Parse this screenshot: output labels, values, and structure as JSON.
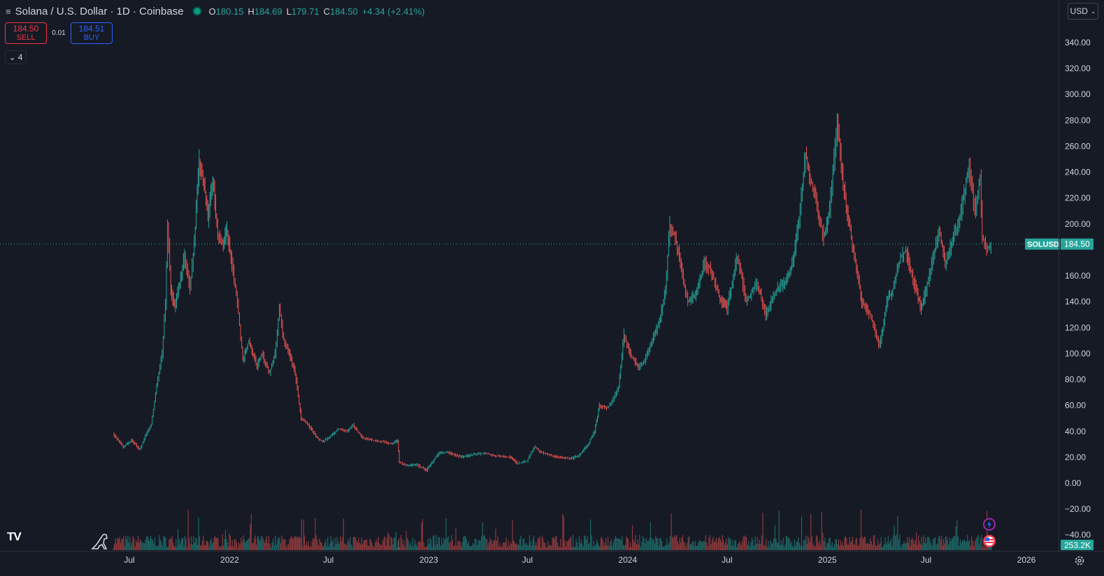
{
  "header": {
    "symbol": "Solana / U.S. Dollar · 1D · Coinbase",
    "ohlc": [
      {
        "k": "O",
        "v": "180.15"
      },
      {
        "k": "H",
        "v": "184.69"
      },
      {
        "k": "L",
        "v": "179.71"
      },
      {
        "k": "C",
        "v": "184.50"
      }
    ],
    "change": "+4.34 (+2.41%)"
  },
  "trade": {
    "sell_price": "184.50",
    "sell_label": "SELL",
    "spread": "0.01",
    "buy_price": "184.51",
    "buy_label": "BUY"
  },
  "indicators_count": "4",
  "currency": "USD",
  "colors": {
    "background": "#161a25",
    "up": "#26a69a",
    "down": "#ef5350",
    "grid": "#2a2e39",
    "text": "#d1d4dc",
    "sell": "#f23645",
    "buy": "#2962ff"
  },
  "chart_data": {
    "type": "line",
    "title": "Solana / U.S. Dollar · 1D · Coinbase",
    "price_label": {
      "symbol": "SOLUSD",
      "value": "184.50"
    },
    "volume_label": "253.2K",
    "yticks": [
      {
        "v": 340,
        "label": "340.00"
      },
      {
        "v": 320,
        "label": "320.00"
      },
      {
        "v": 300,
        "label": "300.00"
      },
      {
        "v": 280,
        "label": "280.00"
      },
      {
        "v": 260,
        "label": "260.00"
      },
      {
        "v": 240,
        "label": "240.00"
      },
      {
        "v": 220,
        "label": "220.00"
      },
      {
        "v": 200,
        "label": "200.00"
      },
      {
        "v": 160,
        "label": "160.00"
      },
      {
        "v": 140,
        "label": "140.00"
      },
      {
        "v": 120,
        "label": "120.00"
      },
      {
        "v": 100,
        "label": "100.00"
      },
      {
        "v": 80,
        "label": "80.00"
      },
      {
        "v": 60,
        "label": "60.00"
      },
      {
        "v": 40,
        "label": "40.00"
      },
      {
        "v": 20,
        "label": "20.00"
      },
      {
        "v": 0,
        "label": "0.00"
      },
      {
        "v": -20,
        "label": "−20.00"
      },
      {
        "v": -40,
        "label": "−40.00"
      }
    ],
    "xticks": [
      {
        "x": "2021-07-01",
        "label": "Jul"
      },
      {
        "x": "2022-01-01",
        "label": "2022"
      },
      {
        "x": "2022-07-01",
        "label": "Jul"
      },
      {
        "x": "2023-01-01",
        "label": "2023"
      },
      {
        "x": "2023-07-01",
        "label": "Jul"
      },
      {
        "x": "2024-01-01",
        "label": "2024"
      },
      {
        "x": "2024-07-01",
        "label": "Jul"
      },
      {
        "x": "2025-01-01",
        "label": "2025"
      },
      {
        "x": "2025-07-01",
        "label": "Jul"
      },
      {
        "x": "2026-01-01",
        "label": "2026"
      }
    ],
    "ylim": [
      -43,
      362
    ],
    "series": [
      {
        "values": [
          [
            "2021-06-01",
            38
          ],
          [
            "2021-06-20",
            28
          ],
          [
            "2021-07-05",
            33
          ],
          [
            "2021-07-20",
            26
          ],
          [
            "2021-08-01",
            38
          ],
          [
            "2021-08-10",
            45
          ],
          [
            "2021-08-20",
            75
          ],
          [
            "2021-08-30",
            100
          ],
          [
            "2021-09-05",
            140
          ],
          [
            "2021-09-09",
            200
          ],
          [
            "2021-09-15",
            150
          ],
          [
            "2021-09-22",
            135
          ],
          [
            "2021-10-01",
            155
          ],
          [
            "2021-10-10",
            175
          ],
          [
            "2021-10-20",
            150
          ],
          [
            "2021-10-28",
            185
          ],
          [
            "2021-11-06",
            250
          ],
          [
            "2021-11-15",
            230
          ],
          [
            "2021-11-22",
            205
          ],
          [
            "2021-12-01",
            235
          ],
          [
            "2021-12-10",
            190
          ],
          [
            "2021-12-20",
            185
          ],
          [
            "2021-12-27",
            195
          ],
          [
            "2022-01-05",
            170
          ],
          [
            "2022-01-15",
            140
          ],
          [
            "2022-01-25",
            95
          ],
          [
            "2022-02-05",
            110
          ],
          [
            "2022-02-20",
            90
          ],
          [
            "2022-03-01",
            100
          ],
          [
            "2022-03-15",
            85
          ],
          [
            "2022-03-25",
            100
          ],
          [
            "2022-04-02",
            135
          ],
          [
            "2022-04-10",
            110
          ],
          [
            "2022-04-20",
            100
          ],
          [
            "2022-05-01",
            85
          ],
          [
            "2022-05-12",
            50
          ],
          [
            "2022-05-25",
            45
          ],
          [
            "2022-06-10",
            35
          ],
          [
            "2022-06-20",
            32
          ],
          [
            "2022-07-01",
            35
          ],
          [
            "2022-07-20",
            42
          ],
          [
            "2022-08-05",
            40
          ],
          [
            "2022-08-15",
            45
          ],
          [
            "2022-09-01",
            35
          ],
          [
            "2022-09-20",
            33
          ],
          [
            "2022-10-10",
            32
          ],
          [
            "2022-10-25",
            30
          ],
          [
            "2022-11-05",
            33
          ],
          [
            "2022-11-08",
            16
          ],
          [
            "2022-11-20",
            14
          ],
          [
            "2022-12-10",
            14
          ],
          [
            "2022-12-28",
            10
          ],
          [
            "2023-01-10",
            18
          ],
          [
            "2023-01-20",
            23
          ],
          [
            "2023-02-05",
            24
          ],
          [
            "2023-03-01",
            20
          ],
          [
            "2023-03-20",
            22
          ],
          [
            "2023-04-15",
            23
          ],
          [
            "2023-05-05",
            21
          ],
          [
            "2023-06-01",
            20
          ],
          [
            "2023-06-12",
            15
          ],
          [
            "2023-06-30",
            17
          ],
          [
            "2023-07-14",
            28
          ],
          [
            "2023-07-25",
            24
          ],
          [
            "2023-08-15",
            21
          ],
          [
            "2023-09-01",
            20
          ],
          [
            "2023-09-20",
            19
          ],
          [
            "2023-10-05",
            22
          ],
          [
            "2023-10-20",
            30
          ],
          [
            "2023-11-01",
            40
          ],
          [
            "2023-11-10",
            60
          ],
          [
            "2023-11-25",
            58
          ],
          [
            "2023-12-05",
            65
          ],
          [
            "2023-12-15",
            75
          ],
          [
            "2023-12-25",
            115
          ],
          [
            "2024-01-05",
            100
          ],
          [
            "2024-01-20",
            90
          ],
          [
            "2024-02-01",
            95
          ],
          [
            "2024-02-15",
            110
          ],
          [
            "2024-02-28",
            125
          ],
          [
            "2024-03-10",
            150
          ],
          [
            "2024-03-18",
            200
          ],
          [
            "2024-03-28",
            190
          ],
          [
            "2024-04-10",
            160
          ],
          [
            "2024-04-20",
            140
          ],
          [
            "2024-05-05",
            145
          ],
          [
            "2024-05-20",
            170
          ],
          [
            "2024-06-01",
            165
          ],
          [
            "2024-06-20",
            140
          ],
          [
            "2024-07-01",
            135
          ],
          [
            "2024-07-20",
            175
          ],
          [
            "2024-08-05",
            140
          ],
          [
            "2024-08-25",
            155
          ],
          [
            "2024-09-10",
            130
          ],
          [
            "2024-09-30",
            150
          ],
          [
            "2024-10-15",
            155
          ],
          [
            "2024-10-30",
            170
          ],
          [
            "2024-11-10",
            205
          ],
          [
            "2024-11-22",
            255
          ],
          [
            "2024-12-01",
            235
          ],
          [
            "2024-12-15",
            210
          ],
          [
            "2024-12-25",
            190
          ],
          [
            "2025-01-05",
            210
          ],
          [
            "2025-01-19",
            280
          ],
          [
            "2025-01-30",
            230
          ],
          [
            "2025-02-10",
            200
          ],
          [
            "2025-02-25",
            160
          ],
          [
            "2025-03-05",
            140
          ],
          [
            "2025-03-20",
            130
          ],
          [
            "2025-04-07",
            105
          ],
          [
            "2025-04-20",
            140
          ],
          [
            "2025-05-01",
            150
          ],
          [
            "2025-05-15",
            175
          ],
          [
            "2025-05-25",
            180
          ],
          [
            "2025-06-05",
            160
          ],
          [
            "2025-06-22",
            135
          ],
          [
            "2025-07-01",
            150
          ],
          [
            "2025-07-15",
            175
          ],
          [
            "2025-07-25",
            195
          ],
          [
            "2025-08-05",
            170
          ],
          [
            "2025-08-20",
            190
          ],
          [
            "2025-09-01",
            205
          ],
          [
            "2025-09-18",
            245
          ],
          [
            "2025-09-28",
            210
          ],
          [
            "2025-10-08",
            235
          ],
          [
            "2025-10-12",
            190
          ],
          [
            "2025-10-20",
            180
          ],
          [
            "2025-10-28",
            184.5
          ]
        ]
      }
    ]
  }
}
